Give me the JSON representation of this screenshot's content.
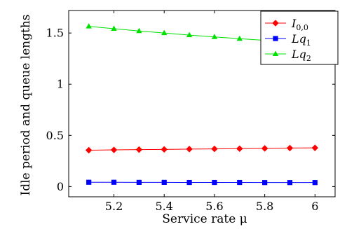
{
  "chart_data": {
    "type": "line",
    "xlabel": "Service rate μ",
    "ylabel": "Idle period and queue lengths",
    "xlim": [
      5.02,
      6.08
    ],
    "ylim": [
      -0.1,
      1.72
    ],
    "xticks": [
      5.2,
      5.4,
      5.6,
      5.8,
      6
    ],
    "xtick_labels": [
      "5.2",
      "5.4",
      "5.6",
      "5.8",
      "6"
    ],
    "yticks": [
      0,
      0.5,
      1,
      1.5
    ],
    "ytick_labels": [
      "0",
      "0.5",
      "1",
      "1.5"
    ],
    "legend_position": "top-right",
    "grid": false,
    "x": [
      5.1,
      5.2,
      5.3,
      5.4,
      5.5,
      5.6,
      5.7,
      5.8,
      5.9,
      6.0
    ],
    "series": [
      {
        "name": "I0,0",
        "label_main": "I",
        "label_sub": "0,0",
        "color": "#ff0000",
        "marker": "diamond",
        "values": [
          0.355,
          0.358,
          0.361,
          0.363,
          0.366,
          0.368,
          0.37,
          0.373,
          0.376,
          0.378
        ]
      },
      {
        "name": "Lq1",
        "label_main": "Lq",
        "label_sub": "1",
        "color": "#0000ff",
        "marker": "square",
        "values": [
          0.042,
          0.042,
          0.041,
          0.041,
          0.04,
          0.04,
          0.04,
          0.039,
          0.039,
          0.039
        ]
      },
      {
        "name": "Lq2",
        "label_main": "Lq",
        "label_sub": "2",
        "color": "#00e000",
        "marker": "triangle",
        "values": [
          1.565,
          1.542,
          1.52,
          1.5,
          1.48,
          1.462,
          1.445,
          1.428,
          1.412,
          1.398
        ]
      }
    ]
  }
}
